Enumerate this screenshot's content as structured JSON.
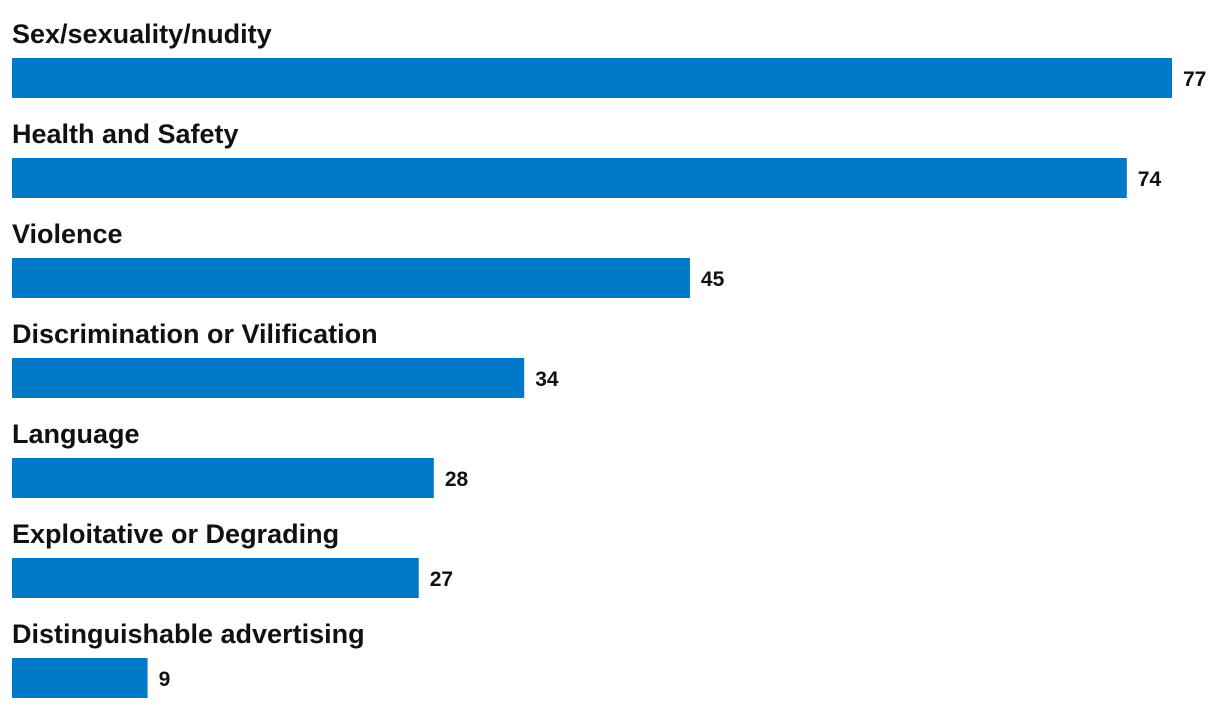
{
  "chart_data": {
    "type": "bar",
    "orientation": "horizontal",
    "categories": [
      "Sex/sexuality/nudity",
      "Health and Safety",
      "Violence",
      "Discrimination or Vilification",
      "Language",
      "Exploitative or Degrading",
      "Distinguishable advertising"
    ],
    "values": [
      77,
      74,
      45,
      34,
      28,
      27,
      9
    ],
    "value_labels": [
      "77",
      "74",
      "45",
      "34",
      "28",
      "27",
      "9"
    ],
    "title": "",
    "xlabel": "",
    "ylabel": "",
    "xlim": [
      0,
      77
    ],
    "grid": false,
    "legend": "none",
    "bar_color": "#0079C8"
  }
}
